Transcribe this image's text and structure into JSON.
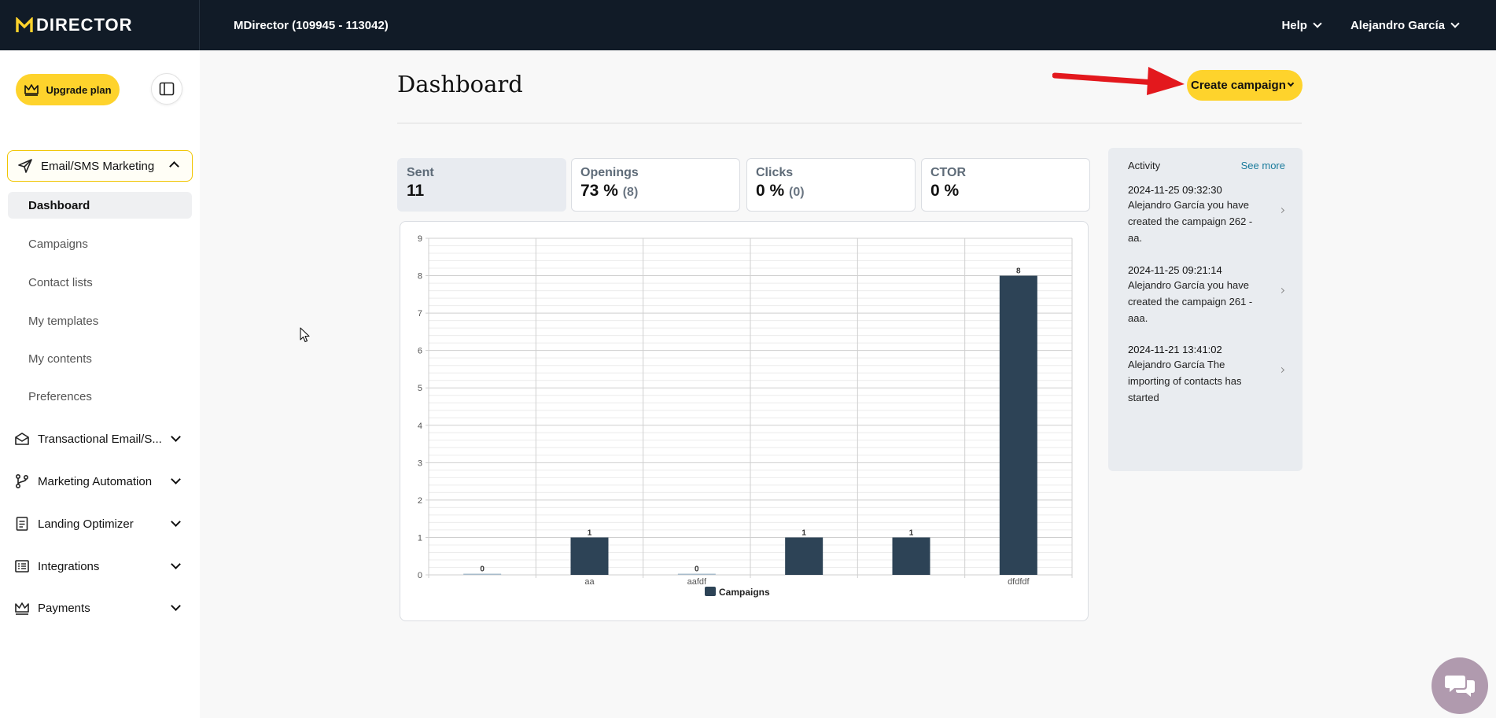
{
  "topbar": {
    "brand": "DIRECTOR",
    "account_title": "MDirector (109945 - 113042)",
    "help_label": "Help",
    "user_label": "Alejandro García"
  },
  "sidebar": {
    "upgrade_label": "Upgrade plan",
    "open_section": "Email/SMS Marketing",
    "subitems": [
      "Dashboard",
      "Campaigns",
      "Contact lists",
      "My templates",
      "My contents",
      "Preferences"
    ],
    "sections": [
      "Transactional Email/S...",
      "Marketing Automation",
      "Landing Optimizer",
      "Integrations",
      "Payments"
    ]
  },
  "main": {
    "title": "Dashboard",
    "create_label": "Create campaign"
  },
  "stats": [
    {
      "label": "Sent",
      "value": "11",
      "sub": ""
    },
    {
      "label": "Openings",
      "value": "73 %",
      "sub": "(8)"
    },
    {
      "label": "Clicks",
      "value": "0 %",
      "sub": "(0)"
    },
    {
      "label": "CTOR",
      "value": "0 %",
      "sub": ""
    }
  ],
  "activity": {
    "title": "Activity",
    "see_more": "See more",
    "items": [
      {
        "date": "2024-11-25 09:32:30",
        "text": "Alejandro García you have created the campaign 262 - aa."
      },
      {
        "date": "2024-11-25 09:21:14",
        "text": "Alejandro García you have created the campaign 261 - aaa."
      },
      {
        "date": "2024-11-21 13:41:02",
        "text": "Alejandro García The importing of contacts has started"
      }
    ]
  },
  "colors": {
    "accent": "#fed32c",
    "topbar": "#111b27",
    "bar": "#2d4356",
    "arrow": "#e3181d"
  },
  "chart_data": {
    "type": "bar",
    "categories": [
      "",
      "aa",
      "aafdf",
      "",
      "",
      "dfdfdf"
    ],
    "series": [
      {
        "name": "Campaigns",
        "values": [
          0,
          1,
          0,
          1,
          1,
          8
        ]
      }
    ],
    "ylim": [
      0,
      9
    ],
    "yticks": [
      0,
      1,
      2,
      3,
      4,
      5,
      6,
      7,
      8,
      9
    ],
    "legend": "bottom",
    "grid": true
  }
}
